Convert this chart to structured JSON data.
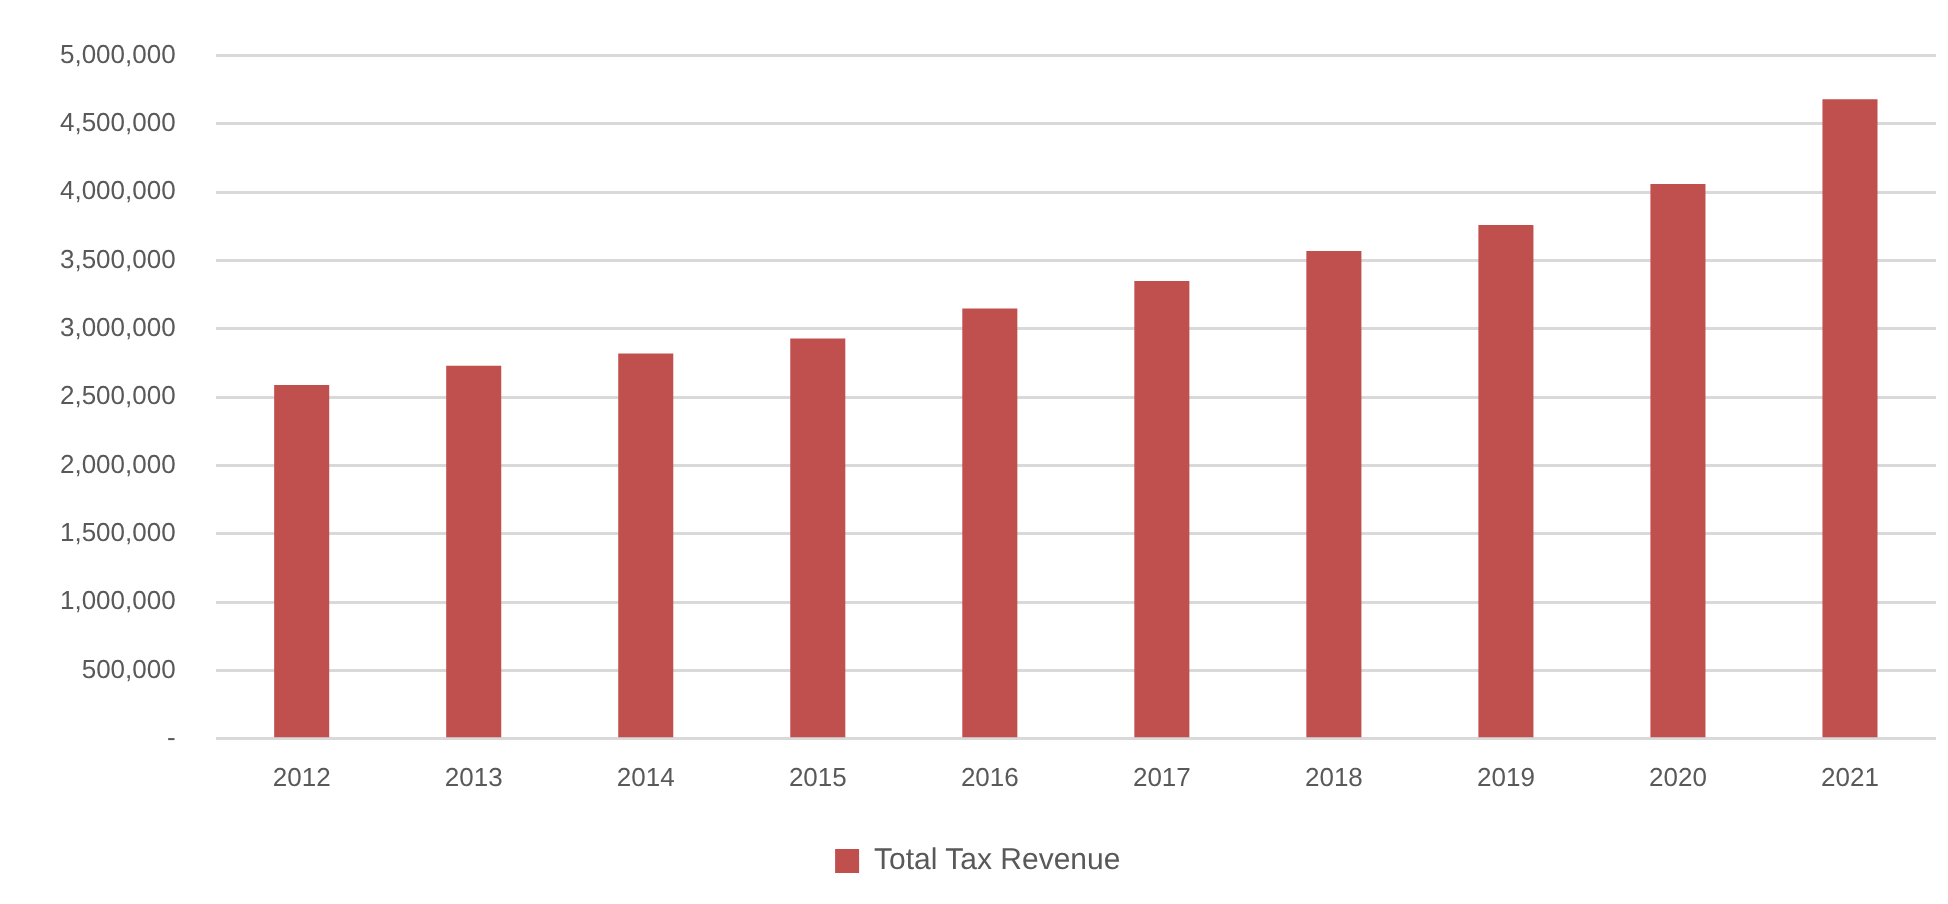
{
  "chart_data": {
    "type": "bar",
    "categories": [
      "2012",
      "2013",
      "2014",
      "2015",
      "2016",
      "2017",
      "2018",
      "2019",
      "2020",
      "2021"
    ],
    "series": [
      {
        "name": "Total Tax Revenue",
        "color": "#c0504d",
        "values": [
          2590000,
          2730000,
          2820000,
          2930000,
          3150000,
          3350000,
          3570000,
          3760000,
          4060000,
          4680000
        ]
      }
    ],
    "ylim": [
      0,
      5000000
    ],
    "yticks": [
      {
        "value": 0,
        "label": "-"
      },
      {
        "value": 500000,
        "label": "500,000"
      },
      {
        "value": 1000000,
        "label": "1,000,000"
      },
      {
        "value": 1500000,
        "label": "1,500,000"
      },
      {
        "value": 2000000,
        "label": "2,000,000"
      },
      {
        "value": 2500000,
        "label": "2,500,000"
      },
      {
        "value": 3000000,
        "label": "3,000,000"
      },
      {
        "value": 3500000,
        "label": "3,500,000"
      },
      {
        "value": 4000000,
        "label": "4,000,000"
      },
      {
        "value": 4500000,
        "label": "4,500,000"
      },
      {
        "value": 5000000,
        "label": "5,000,000"
      }
    ],
    "grid": "y",
    "legend": "bottom"
  }
}
